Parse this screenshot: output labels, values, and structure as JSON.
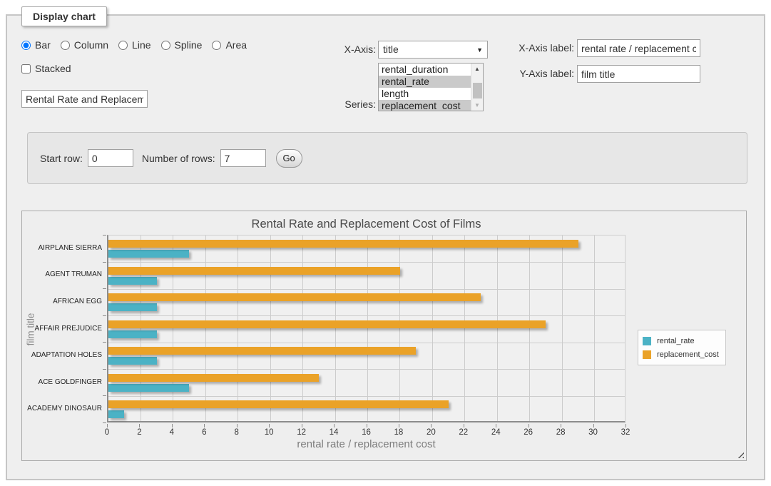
{
  "panel": {
    "legend": "Display chart"
  },
  "icons": {
    "select_arrow": "▼",
    "scroll_up": "▲",
    "scroll_down": "▼"
  },
  "chart_type_options": [
    {
      "label": "Bar",
      "selected": true
    },
    {
      "label": "Column",
      "selected": false
    },
    {
      "label": "Line",
      "selected": false
    },
    {
      "label": "Spline",
      "selected": false
    },
    {
      "label": "Area",
      "selected": false
    }
  ],
  "stacked": {
    "label": "Stacked",
    "checked": false
  },
  "title_input": {
    "value": "Rental Rate and Replacement Cost of Films"
  },
  "x_axis": {
    "label": "X-Axis:",
    "value": "title"
  },
  "series_select": {
    "label": "Series:",
    "options": [
      {
        "label": "rental_duration",
        "selected": false
      },
      {
        "label": "rental_rate",
        "selected": true
      },
      {
        "label": "length",
        "selected": false
      },
      {
        "label": "replacement_cost",
        "selected": true
      }
    ]
  },
  "x_axis_label": {
    "label": "X-Axis label:",
    "value": "rental rate / replacement cost"
  },
  "y_axis_label": {
    "label": "Y-Axis label:",
    "value": "film title"
  },
  "row_controls": {
    "start_row_label": "Start row:",
    "start_row_value": "0",
    "num_rows_label": "Number of rows:",
    "num_rows_value": "7",
    "go_label": "Go"
  },
  "chart_data": {
    "type": "bar",
    "orientation": "horizontal",
    "title": "Rental Rate and Replacement Cost of Films",
    "xlabel": "rental rate / replacement cost",
    "ylabel": "film title",
    "categories": [
      "AIRPLANE SIERRA",
      "AGENT TRUMAN",
      "AFRICAN EGG",
      "AFFAIR PREJUDICE",
      "ADAPTATION HOLES",
      "ACE GOLDFINGER",
      "ACADEMY DINOSAUR"
    ],
    "series": [
      {
        "name": "rental_rate",
        "color": "#4bb2c5",
        "values": [
          4.99,
          2.99,
          2.99,
          2.99,
          2.99,
          4.99,
          0.99
        ]
      },
      {
        "name": "replacement_cost",
        "color": "#eaa228",
        "values": [
          28.99,
          17.99,
          22.99,
          26.99,
          18.99,
          12.99,
          20.99
        ]
      }
    ],
    "xlim": [
      0,
      32
    ],
    "xticks": [
      0,
      2,
      4,
      6,
      8,
      10,
      12,
      14,
      16,
      18,
      20,
      22,
      24,
      26,
      28,
      30,
      32
    ],
    "grid": true,
    "legend_position": "right"
  }
}
